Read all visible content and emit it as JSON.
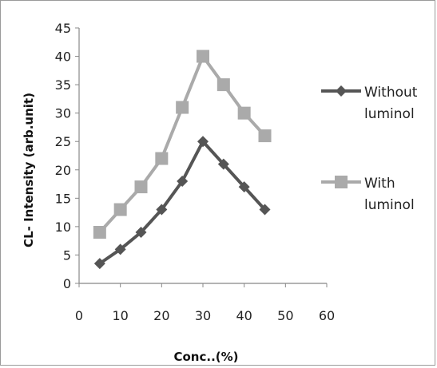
{
  "chart_data": {
    "type": "line",
    "title": "",
    "xlabel": "Conc..(%)",
    "ylabel": "CL- Intensity (arb.unit)",
    "xlim": [
      0,
      60
    ],
    "ylim": [
      0,
      45
    ],
    "xticks": [
      0,
      10,
      20,
      30,
      40,
      50,
      60
    ],
    "yticks": [
      0,
      5,
      10,
      15,
      20,
      25,
      30,
      35,
      40,
      45
    ],
    "grid": false,
    "legend_position": "right",
    "x": [
      5,
      10,
      15,
      20,
      25,
      30,
      35,
      40,
      45
    ],
    "series": [
      {
        "name": "Without luminol",
        "legend_lines": [
          "Without",
          "luminol"
        ],
        "marker": "diamond",
        "color": "#555555",
        "values": [
          3.5,
          6,
          9,
          13,
          18,
          25,
          21,
          17,
          13
        ]
      },
      {
        "name": "With luminol",
        "legend_lines": [
          "With",
          "luminol"
        ],
        "marker": "square",
        "color": "#aaaaaa",
        "values": [
          9,
          13,
          17,
          22,
          31,
          40,
          35,
          30,
          26
        ]
      }
    ]
  }
}
